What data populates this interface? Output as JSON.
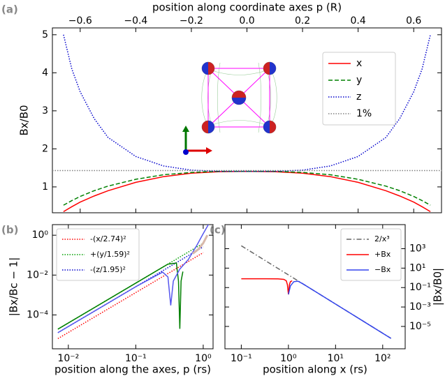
{
  "chart_data": [
    {
      "type": "line",
      "label": "(a)",
      "xlabel": "position along coordinate axes p (R)",
      "ylabel": "Bx/B0",
      "xaxis": "top",
      "xscale": "linear",
      "yscale": "linear",
      "xlim": [
        -0.7,
        0.7
      ],
      "ylim": [
        0.32,
        5.18
      ],
      "xticks": [
        {
          "value": -0.6,
          "label": "−0.6"
        },
        {
          "value": -0.4,
          "label": "−0.4"
        },
        {
          "value": -0.2,
          "label": "−0.2"
        },
        {
          "value": 0,
          "label": "0.0"
        },
        0.2,
        0.4,
        0.6
      ],
      "yticks": [
        1,
        2,
        3,
        4,
        5
      ],
      "legend": "upper right",
      "series": [
        {
          "name": "x",
          "color": "#ff0000",
          "linestyle": "solid",
          "x": [
            -0.66,
            -0.63,
            -0.6,
            -0.55,
            -0.5,
            -0.4,
            -0.3,
            -0.2,
            -0.1,
            0,
            0.1,
            0.2,
            0.3,
            0.4,
            0.5,
            0.55,
            0.6,
            0.63,
            0.66
          ],
          "values": [
            0.35,
            0.48,
            0.6,
            0.76,
            0.9,
            1.12,
            1.27,
            1.36,
            1.4,
            1.41,
            1.4,
            1.36,
            1.27,
            1.12,
            0.9,
            0.76,
            0.6,
            0.48,
            0.35
          ]
        },
        {
          "name": "y",
          "color": "#008000",
          "linestyle": "dashed",
          "x": [
            -0.66,
            -0.63,
            -0.6,
            -0.55,
            -0.5,
            -0.4,
            -0.3,
            -0.2,
            -0.1,
            0,
            0.1,
            0.2,
            0.3,
            0.4,
            0.5,
            0.55,
            0.6,
            0.63,
            0.66
          ],
          "values": [
            0.52,
            0.64,
            0.75,
            0.9,
            1.02,
            1.2,
            1.32,
            1.38,
            1.41,
            1.41,
            1.41,
            1.38,
            1.32,
            1.2,
            1.02,
            0.9,
            0.75,
            0.64,
            0.52
          ]
        },
        {
          "name": "z",
          "color": "#0000cc",
          "linestyle": "dotted",
          "x": [
            -0.66,
            -0.63,
            -0.6,
            -0.55,
            -0.5,
            -0.4,
            -0.3,
            -0.2,
            -0.1,
            0,
            0.1,
            0.2,
            0.3,
            0.4,
            0.5,
            0.55,
            0.6,
            0.63,
            0.66
          ],
          "values": [
            5.0,
            4.1,
            3.5,
            2.8,
            2.3,
            1.8,
            1.55,
            1.44,
            1.41,
            1.41,
            1.41,
            1.44,
            1.55,
            1.8,
            2.3,
            2.8,
            3.5,
            4.1,
            5.0
          ]
        },
        {
          "name": "1%",
          "color": "#808080",
          "linestyle": "dotted",
          "x": [
            -0.7,
            0.7
          ],
          "values": [
            1.43,
            1.43
          ]
        }
      ]
    },
    {
      "type": "line",
      "label": "(b)",
      "xlabel": "position along the axes, p (rs)",
      "ylabel": "|Bx/Bc − 1|",
      "xaxis": "bottom",
      "yaxis": "left",
      "xscale": "log",
      "yscale": "log",
      "xlim": [
        0.0058,
        1.4
      ],
      "ylim": [
        2e-06,
        3.4
      ],
      "xticks": [
        {
          "value": 0.01,
          "label": "10⁻²"
        },
        {
          "value": 0.1,
          "label": "10⁻¹"
        },
        {
          "value": 1,
          "label": "10⁰"
        }
      ],
      "yticks": [
        {
          "value": 1,
          "label": "10⁰"
        },
        {
          "value": 0.01,
          "label": "10⁻²"
        },
        {
          "value": 0.0001,
          "label": "10⁻⁴"
        }
      ],
      "legend": "upper left",
      "series": [
        {
          "name": "-(x/2.74)²",
          "color": "#ff0000",
          "linestyle": "dotted",
          "x": [
            0.007,
            1.0
          ],
          "values": [
            6.5e-06,
            0.133
          ]
        },
        {
          "name": "+(y/1.59)²",
          "color": "#00a000",
          "linestyle": "dotted",
          "x": [
            0.007,
            1.0
          ],
          "values": [
            1.94e-05,
            0.396
          ]
        },
        {
          "name": "-(z/1.95)²",
          "color": "#0000cc",
          "linestyle": "dotted",
          "x": [
            0.007,
            1.0
          ],
          "values": [
            1.29e-05,
            0.263
          ]
        },
        {
          "color": "#008000",
          "linestyle": "solid",
          "x": [
            0.007,
            0.1,
            0.3,
            0.4,
            0.43,
            0.45,
            0.47,
            0.5
          ],
          "values": [
            1.94e-05,
            0.00396,
            0.0356,
            0.04,
            0.005,
            2e-05,
            0.005,
            0.015
          ]
        },
        {
          "color": "#5555ee",
          "linestyle": "solid",
          "x": [
            0.007,
            0.1,
            0.25,
            0.3,
            0.33,
            0.36,
            0.45,
            0.6,
            0.8,
            1.0,
            1.2
          ],
          "values": [
            1.29e-05,
            0.0026,
            0.014,
            0.008,
            0.0003,
            0.005,
            0.02,
            0.06,
            0.3,
            1.2,
            3.5
          ]
        },
        {
          "color": "#d8b8aa",
          "linestyle": "solid",
          "x": [
            0.7,
            0.85,
            1.0,
            1.15
          ],
          "values": [
            0.12,
            0.2,
            0.4,
            1.0
          ]
        }
      ]
    },
    {
      "type": "line",
      "label": "(c)",
      "xlabel": "position along x (rs)",
      "ylabel": "|Bx/B0|",
      "xaxis": "bottom",
      "yaxis": "right",
      "xscale": "log",
      "yscale": "log",
      "xlim": [
        0.045,
        300
      ],
      "ylim": [
        5e-08,
        300000
      ],
      "xticks": [
        {
          "value": 0.1,
          "label": "10⁻¹"
        },
        {
          "value": 1,
          "label": "10⁰"
        },
        {
          "value": 10,
          "label": "10¹"
        },
        {
          "value": 100,
          "label": "10²"
        }
      ],
      "yticks": [
        {
          "value": 1000,
          "label": "10³"
        },
        {
          "value": 10,
          "label": "10¹"
        },
        {
          "value": 0.1,
          "label": "10⁻¹"
        },
        {
          "value": 0.001,
          "label": "10⁻³"
        },
        {
          "value": 1e-05,
          "label": "10⁻⁵"
        }
      ],
      "legend": "upper right",
      "series": [
        {
          "name": "2/x³",
          "color": "#666666",
          "linestyle": "dashdot",
          "x": [
            0.1,
            150
          ],
          "values": [
            2000,
            5.93e-07
          ]
        },
        {
          "name": "+Bx",
          "color": "#ff0000",
          "linestyle": "solid",
          "x": [
            0.1,
            0.3,
            0.6,
            0.8,
            0.9,
            0.95,
            1.0,
            1.05,
            1.1,
            1.2
          ],
          "values": [
            0.8,
            0.8,
            0.78,
            0.7,
            0.5,
            0.2,
            0.02,
            0.2,
            0.4,
            0.5
          ]
        },
        {
          "name": "−Bx",
          "color": "#3344ee",
          "linestyle": "solid",
          "x": [
            1.0,
            1.1,
            1.3,
            1.6,
            2,
            3,
            5,
            10,
            30,
            150
          ],
          "values": [
            0.02,
            0.15,
            0.4,
            0.45,
            0.25,
            0.074,
            0.016,
            0.002,
            7.4e-05,
            5.9e-07
          ]
        }
      ]
    }
  ]
}
